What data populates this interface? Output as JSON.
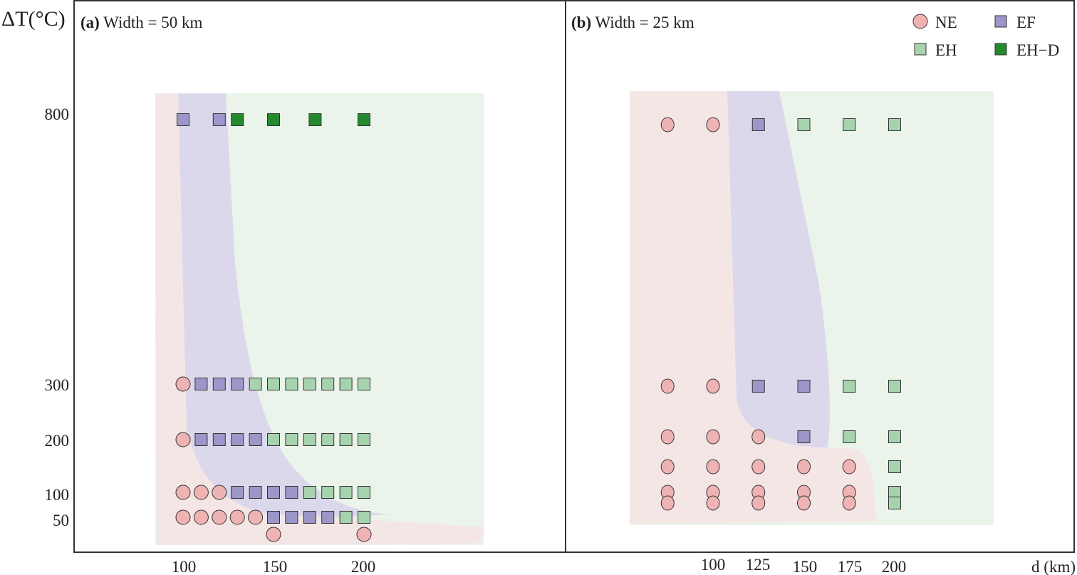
{
  "chart_data": [
    {
      "type": "scatter",
      "panel": "a",
      "title_prefix": "(a)",
      "title": "Width = 50 km",
      "ylabel": "ΔT(°C)",
      "xlabel": "d (km)",
      "x_ticks": [
        "100",
        "150",
        "200"
      ],
      "y_ticks": [
        "800",
        "300",
        "200",
        "100",
        "50"
      ],
      "rows": [
        {
          "dT": 800,
          "points": [
            {
              "d": 100,
              "c": "EF"
            },
            {
              "d": 120,
              "c": "EF"
            },
            {
              "d": 130,
              "c": "EH-D"
            },
            {
              "d": 150,
              "c": "EH-D"
            },
            {
              "d": 173,
              "c": "EH-D"
            },
            {
              "d": 200,
              "c": "EH-D"
            }
          ]
        },
        {
          "dT": 300,
          "points": [
            {
              "d": 100,
              "c": "NE"
            },
            {
              "d": 110,
              "c": "EF"
            },
            {
              "d": 120,
              "c": "EF"
            },
            {
              "d": 130,
              "c": "EF"
            },
            {
              "d": 140,
              "c": "EH"
            },
            {
              "d": 150,
              "c": "EH"
            },
            {
              "d": 160,
              "c": "EH"
            },
            {
              "d": 170,
              "c": "EH"
            },
            {
              "d": 180,
              "c": "EH"
            },
            {
              "d": 190,
              "c": "EH"
            },
            {
              "d": 200,
              "c": "EH"
            }
          ]
        },
        {
          "dT": 200,
          "points": [
            {
              "d": 100,
              "c": "NE"
            },
            {
              "d": 110,
              "c": "EF"
            },
            {
              "d": 120,
              "c": "EF"
            },
            {
              "d": 130,
              "c": "EF"
            },
            {
              "d": 140,
              "c": "EF"
            },
            {
              "d": 150,
              "c": "EH"
            },
            {
              "d": 160,
              "c": "EH"
            },
            {
              "d": 170,
              "c": "EH"
            },
            {
              "d": 180,
              "c": "EH"
            },
            {
              "d": 190,
              "c": "EH"
            },
            {
              "d": 200,
              "c": "EH"
            }
          ]
        },
        {
          "dT": 100,
          "points": [
            {
              "d": 100,
              "c": "NE"
            },
            {
              "d": 110,
              "c": "NE"
            },
            {
              "d": 120,
              "c": "NE"
            },
            {
              "d": 130,
              "c": "EF"
            },
            {
              "d": 140,
              "c": "EF"
            },
            {
              "d": 150,
              "c": "EF"
            },
            {
              "d": 160,
              "c": "EF"
            },
            {
              "d": 170,
              "c": "EH"
            },
            {
              "d": 180,
              "c": "EH"
            },
            {
              "d": 190,
              "c": "EH"
            },
            {
              "d": 200,
              "c": "EH"
            }
          ]
        },
        {
          "dT": 50,
          "points": [
            {
              "d": 100,
              "c": "NE"
            },
            {
              "d": 110,
              "c": "NE"
            },
            {
              "d": 120,
              "c": "NE"
            },
            {
              "d": 130,
              "c": "NE"
            },
            {
              "d": 140,
              "c": "NE"
            },
            {
              "d": 150,
              "c": "EF"
            },
            {
              "d": 160,
              "c": "EF"
            },
            {
              "d": 170,
              "c": "EF"
            },
            {
              "d": 180,
              "c": "EF"
            },
            {
              "d": 190,
              "c": "EH"
            },
            {
              "d": 200,
              "c": "EH"
            }
          ]
        },
        {
          "dT": 25,
          "points": [
            {
              "d": 150,
              "c": "NE"
            },
            {
              "d": 200,
              "c": "NE"
            }
          ]
        }
      ]
    },
    {
      "type": "scatter",
      "panel": "b",
      "title_prefix": "(b)",
      "title": "Width = 25 km",
      "xlabel": "d (km)",
      "x_ticks": [
        "100",
        "125",
        "150",
        "175",
        "200"
      ],
      "rows": [
        {
          "dT": 800,
          "points": [
            {
              "d": 75,
              "c": "NE"
            },
            {
              "d": 100,
              "c": "NE"
            },
            {
              "d": 125,
              "c": "EF"
            },
            {
              "d": 150,
              "c": "EH"
            },
            {
              "d": 175,
              "c": "EH"
            },
            {
              "d": 200,
              "c": "EH"
            }
          ]
        },
        {
          "dT": 300,
          "points": [
            {
              "d": 75,
              "c": "NE"
            },
            {
              "d": 100,
              "c": "NE"
            },
            {
              "d": 125,
              "c": "EF"
            },
            {
              "d": 150,
              "c": "EF"
            },
            {
              "d": 175,
              "c": "EH"
            },
            {
              "d": 200,
              "c": "EH"
            }
          ]
        },
        {
          "dT": 200,
          "points": [
            {
              "d": 75,
              "c": "NE"
            },
            {
              "d": 100,
              "c": "NE"
            },
            {
              "d": 125,
              "c": "NE"
            },
            {
              "d": 150,
              "c": "EF"
            },
            {
              "d": 175,
              "c": "EH"
            },
            {
              "d": 200,
              "c": "EH"
            }
          ]
        },
        {
          "dT": 150,
          "points": [
            {
              "d": 75,
              "c": "NE"
            },
            {
              "d": 100,
              "c": "NE"
            },
            {
              "d": 125,
              "c": "NE"
            },
            {
              "d": 150,
              "c": "NE"
            },
            {
              "d": 175,
              "c": "NE"
            },
            {
              "d": 200,
              "c": "EH"
            }
          ]
        },
        {
          "dT": 100,
          "points": [
            {
              "d": 75,
              "c": "NE"
            },
            {
              "d": 100,
              "c": "NE"
            },
            {
              "d": 125,
              "c": "NE"
            },
            {
              "d": 150,
              "c": "NE"
            },
            {
              "d": 175,
              "c": "NE"
            },
            {
              "d": 200,
              "c": "EH"
            }
          ]
        },
        {
          "dT": 75,
          "points": [
            {
              "d": 75,
              "c": "NE"
            },
            {
              "d": 100,
              "c": "NE"
            },
            {
              "d": 125,
              "c": "NE"
            },
            {
              "d": 150,
              "c": "NE"
            },
            {
              "d": 175,
              "c": "NE"
            },
            {
              "d": 200,
              "c": "EH"
            }
          ]
        }
      ]
    }
  ],
  "legend": {
    "position": "top-right",
    "items": [
      {
        "key": "NE",
        "label": "NE",
        "shape": "circle",
        "color": "#efb3b3"
      },
      {
        "key": "EF",
        "label": "EF",
        "shape": "square",
        "color": "#9d97c9"
      },
      {
        "key": "EH",
        "label": "EH",
        "shape": "square",
        "color": "#a6d3ae"
      },
      {
        "key": "EH-D",
        "label": "EH−D",
        "shape": "square",
        "color": "#258a2e"
      }
    ]
  },
  "regions": {
    "NE": "#f5e6e6",
    "EF": "#dcd8ec",
    "EH": "#ebf4ea"
  }
}
